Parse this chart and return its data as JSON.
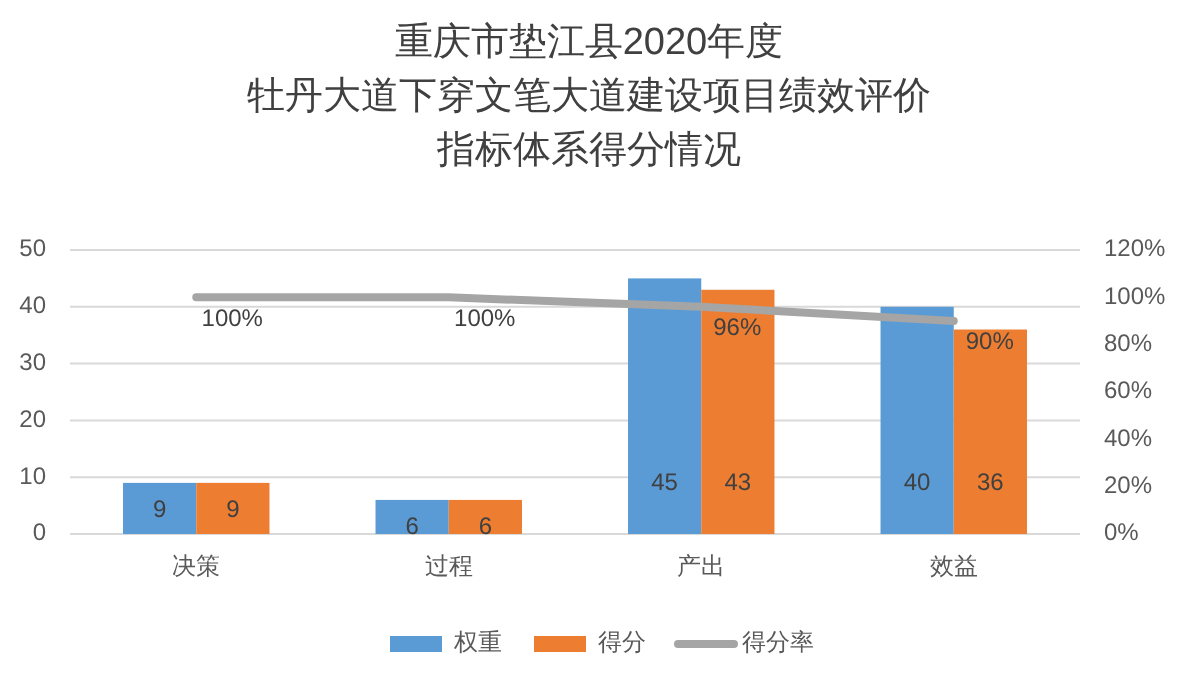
{
  "chart_data": {
    "type": "bar",
    "title": "重庆市垫江县2020年度",
    "subtitle": "牡丹大道下穿文笔大道建设项目绩效评价指标体系得分情况",
    "categories": [
      "决策",
      "过程",
      "产出",
      "效益"
    ],
    "series": [
      {
        "name": "权重",
        "color": "#5b9bd5",
        "values": [
          9,
          6,
          45,
          40
        ]
      },
      {
        "name": "得分",
        "color": "#ed7d31",
        "values": [
          9,
          6,
          43,
          36
        ]
      },
      {
        "name": "得分率",
        "type": "line",
        "axis": "y2",
        "color": "#a5a5a5",
        "values": [
          100,
          100,
          96,
          90
        ],
        "value_labels": [
          "100%",
          "100%",
          "96%",
          "90%"
        ]
      }
    ],
    "ylim": [
      0,
      50
    ],
    "yticks": [
      0,
      10,
      20,
      30,
      40,
      50
    ],
    "y2lim": [
      0,
      120
    ],
    "y2ticks": [
      {
        "value": 0,
        "label": "0%"
      },
      {
        "value": 20,
        "label": "20%"
      },
      {
        "value": 40,
        "label": "40%"
      },
      {
        "value": 60,
        "label": "60%"
      },
      {
        "value": 80,
        "label": "80%"
      },
      {
        "value": 100,
        "label": "100%"
      },
      {
        "value": 120,
        "label": "120%"
      }
    ],
    "data_labels": true,
    "grid": "y",
    "legend": "bottom"
  }
}
